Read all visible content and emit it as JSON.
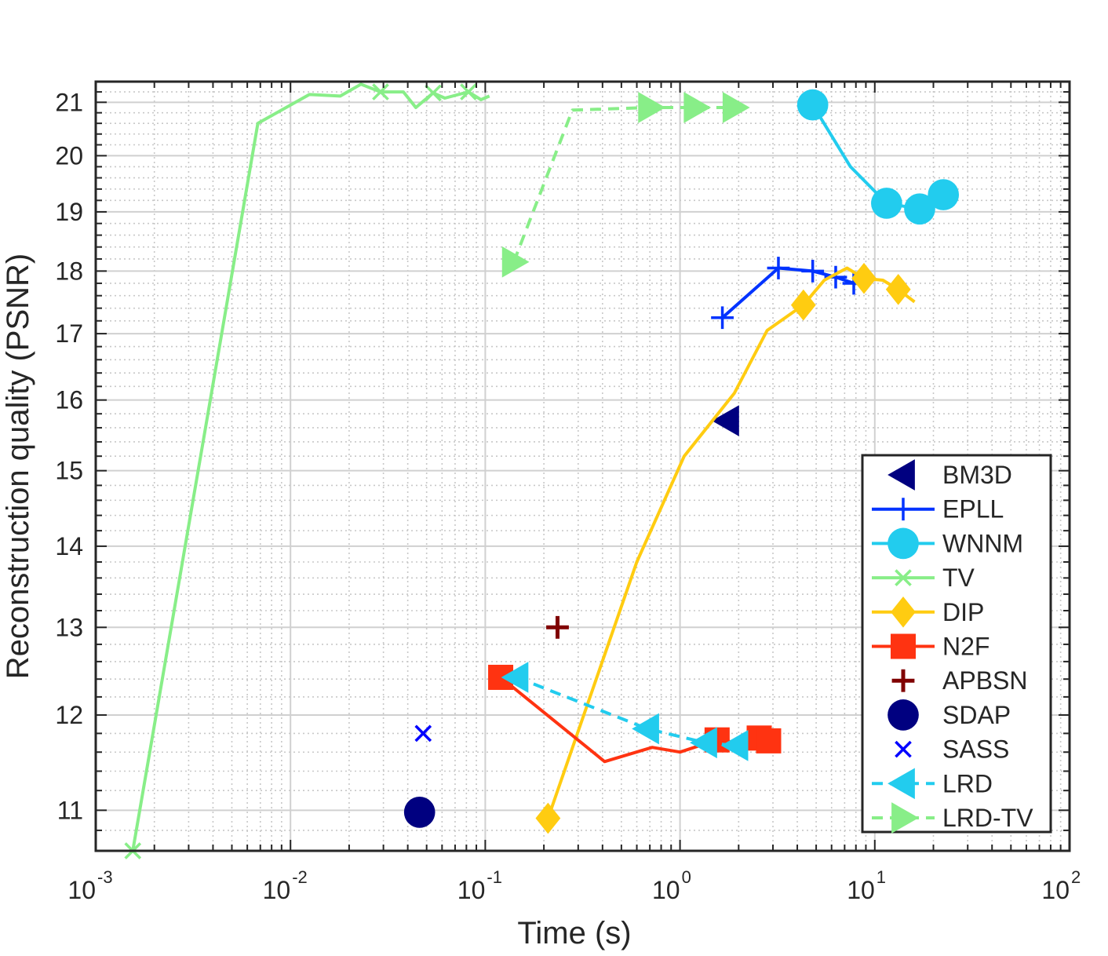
{
  "chart_data": {
    "type": "line",
    "xlabel": "Time (s)",
    "ylabel": "Reconstruction quality (PSNR)",
    "x_scale": "log",
    "y_scale": "log",
    "xlim": [
      0.001,
      100
    ],
    "ylim": [
      10.6,
      21.4
    ],
    "grid": true,
    "minor_grid": true,
    "legend_position": "bottom-right",
    "x_ticks": [
      {
        "value": 0.001,
        "base": "10",
        "exp": "-3"
      },
      {
        "value": 0.01,
        "base": "10",
        "exp": "-2"
      },
      {
        "value": 0.1,
        "base": "10",
        "exp": "-1"
      },
      {
        "value": 1,
        "base": "10",
        "exp": "0"
      },
      {
        "value": 10,
        "base": "10",
        "exp": "1"
      },
      {
        "value": 100,
        "base": "10",
        "exp": "2"
      }
    ],
    "y_ticks": [
      {
        "value": 11,
        "label": "11"
      },
      {
        "value": 12,
        "label": "12"
      },
      {
        "value": 13,
        "label": "13"
      },
      {
        "value": 14,
        "label": "14"
      },
      {
        "value": 15,
        "label": "15"
      },
      {
        "value": 16,
        "label": "16"
      },
      {
        "value": 17,
        "label": "17"
      },
      {
        "value": 18,
        "label": "18"
      },
      {
        "value": 19,
        "label": "19"
      },
      {
        "value": 20,
        "label": "20"
      },
      {
        "value": 21,
        "label": "21"
      }
    ],
    "series": [
      {
        "name": "BM3D",
        "color": "#000080",
        "marker": "triangle-left",
        "line": "none",
        "line_points": [],
        "marker_points": [
          [
            1.75,
            15.7
          ]
        ]
      },
      {
        "name": "EPLL",
        "color": "#0033ff",
        "marker": "plus",
        "line": "solid",
        "line_points": [
          [
            1.65,
            17.25
          ],
          [
            3.2,
            18.05
          ],
          [
            4.8,
            18.0
          ],
          [
            6.3,
            17.9
          ],
          [
            7.8,
            17.8
          ]
        ],
        "marker_points": [
          [
            1.65,
            17.25
          ],
          [
            3.2,
            18.05
          ],
          [
            4.8,
            18.0
          ],
          [
            6.3,
            17.9
          ],
          [
            7.8,
            17.8
          ]
        ]
      },
      {
        "name": "WNNM",
        "color": "#22ccee",
        "marker": "circle",
        "line": "solid",
        "line_points": [
          [
            4.8,
            20.95
          ],
          [
            7.5,
            19.8
          ],
          [
            11.5,
            19.15
          ],
          [
            17,
            19.05
          ],
          [
            22.5,
            19.3
          ]
        ],
        "marker_points": [
          [
            4.8,
            20.95
          ],
          [
            11.5,
            19.15
          ],
          [
            17,
            19.05
          ],
          [
            22.5,
            19.3
          ]
        ]
      },
      {
        "name": "TV",
        "color": "#88ee88",
        "marker": "x",
        "line": "solid",
        "line_points": [
          [
            0.00155,
            10.6
          ],
          [
            0.0068,
            20.6
          ],
          [
            0.0125,
            21.15
          ],
          [
            0.018,
            21.12
          ],
          [
            0.023,
            21.35
          ],
          [
            0.029,
            21.2
          ],
          [
            0.038,
            21.2
          ],
          [
            0.044,
            20.9
          ],
          [
            0.054,
            21.18
          ],
          [
            0.062,
            21.08
          ],
          [
            0.082,
            21.2
          ],
          [
            0.095,
            21.05
          ],
          [
            0.105,
            21.12
          ]
        ],
        "marker_points": [
          [
            0.00155,
            10.6
          ],
          [
            0.029,
            21.2
          ],
          [
            0.054,
            21.18
          ],
          [
            0.082,
            21.2
          ]
        ]
      },
      {
        "name": "DIP",
        "color": "#ffcc11",
        "marker": "diamond",
        "line": "solid",
        "line_points": [
          [
            0.21,
            10.92
          ],
          [
            0.6,
            13.8
          ],
          [
            1.05,
            15.2
          ],
          [
            1.9,
            16.1
          ],
          [
            2.8,
            17.05
          ],
          [
            4.3,
            17.45
          ],
          [
            5.5,
            17.85
          ],
          [
            7.2,
            18.05
          ],
          [
            8.8,
            17.88
          ],
          [
            11,
            17.85
          ],
          [
            13.2,
            17.7
          ],
          [
            16,
            17.5
          ]
        ],
        "marker_points": [
          [
            0.21,
            10.92
          ],
          [
            4.3,
            17.45
          ],
          [
            8.8,
            17.88
          ],
          [
            13.2,
            17.7
          ]
        ]
      },
      {
        "name": "N2F",
        "color": "#ff3311",
        "marker": "square",
        "line": "solid",
        "line_points": [
          [
            0.12,
            12.42
          ],
          [
            0.41,
            11.5
          ],
          [
            0.72,
            11.65
          ],
          [
            1.0,
            11.6
          ],
          [
            1.55,
            11.73
          ],
          [
            2.0,
            11.7
          ],
          [
            2.55,
            11.75
          ],
          [
            2.85,
            11.72
          ]
        ],
        "marker_points": [
          [
            0.12,
            12.42
          ],
          [
            1.55,
            11.73
          ],
          [
            2.55,
            11.75
          ],
          [
            2.85,
            11.72
          ]
        ]
      },
      {
        "name": "APBSN",
        "color": "#800000",
        "marker": "plus-thick",
        "line": "none",
        "line_points": [],
        "marker_points": [
          [
            0.235,
            13.0
          ]
        ]
      },
      {
        "name": "SDAP",
        "color": "#000080",
        "marker": "circle",
        "line": "none",
        "line_points": [],
        "marker_points": [
          [
            0.046,
            10.98
          ]
        ]
      },
      {
        "name": "SASS",
        "color": "#0000ff",
        "marker": "x",
        "line": "none",
        "line_points": [],
        "marker_points": [
          [
            0.048,
            11.8
          ]
        ]
      },
      {
        "name": "LRD",
        "color": "#22ccee",
        "marker": "triangle-left",
        "line": "dashed",
        "line_points": [
          [
            0.145,
            12.42
          ],
          [
            0.68,
            11.85
          ],
          [
            1.35,
            11.7
          ],
          [
            1.95,
            11.67
          ]
        ],
        "marker_points": [
          [
            0.145,
            12.42
          ],
          [
            0.68,
            11.85
          ],
          [
            1.35,
            11.7
          ],
          [
            1.95,
            11.67
          ]
        ]
      },
      {
        "name": "LRD-TV",
        "color": "#88ee88",
        "marker": "triangle-right",
        "line": "dashed",
        "line_points": [
          [
            0.14,
            18.15
          ],
          [
            0.28,
            20.85
          ],
          [
            0.7,
            20.9
          ],
          [
            1.2,
            20.9
          ],
          [
            1.9,
            20.9
          ]
        ],
        "marker_points": [
          [
            0.14,
            18.15
          ],
          [
            0.7,
            20.9
          ],
          [
            1.2,
            20.9
          ],
          [
            1.9,
            20.9
          ]
        ]
      }
    ]
  }
}
